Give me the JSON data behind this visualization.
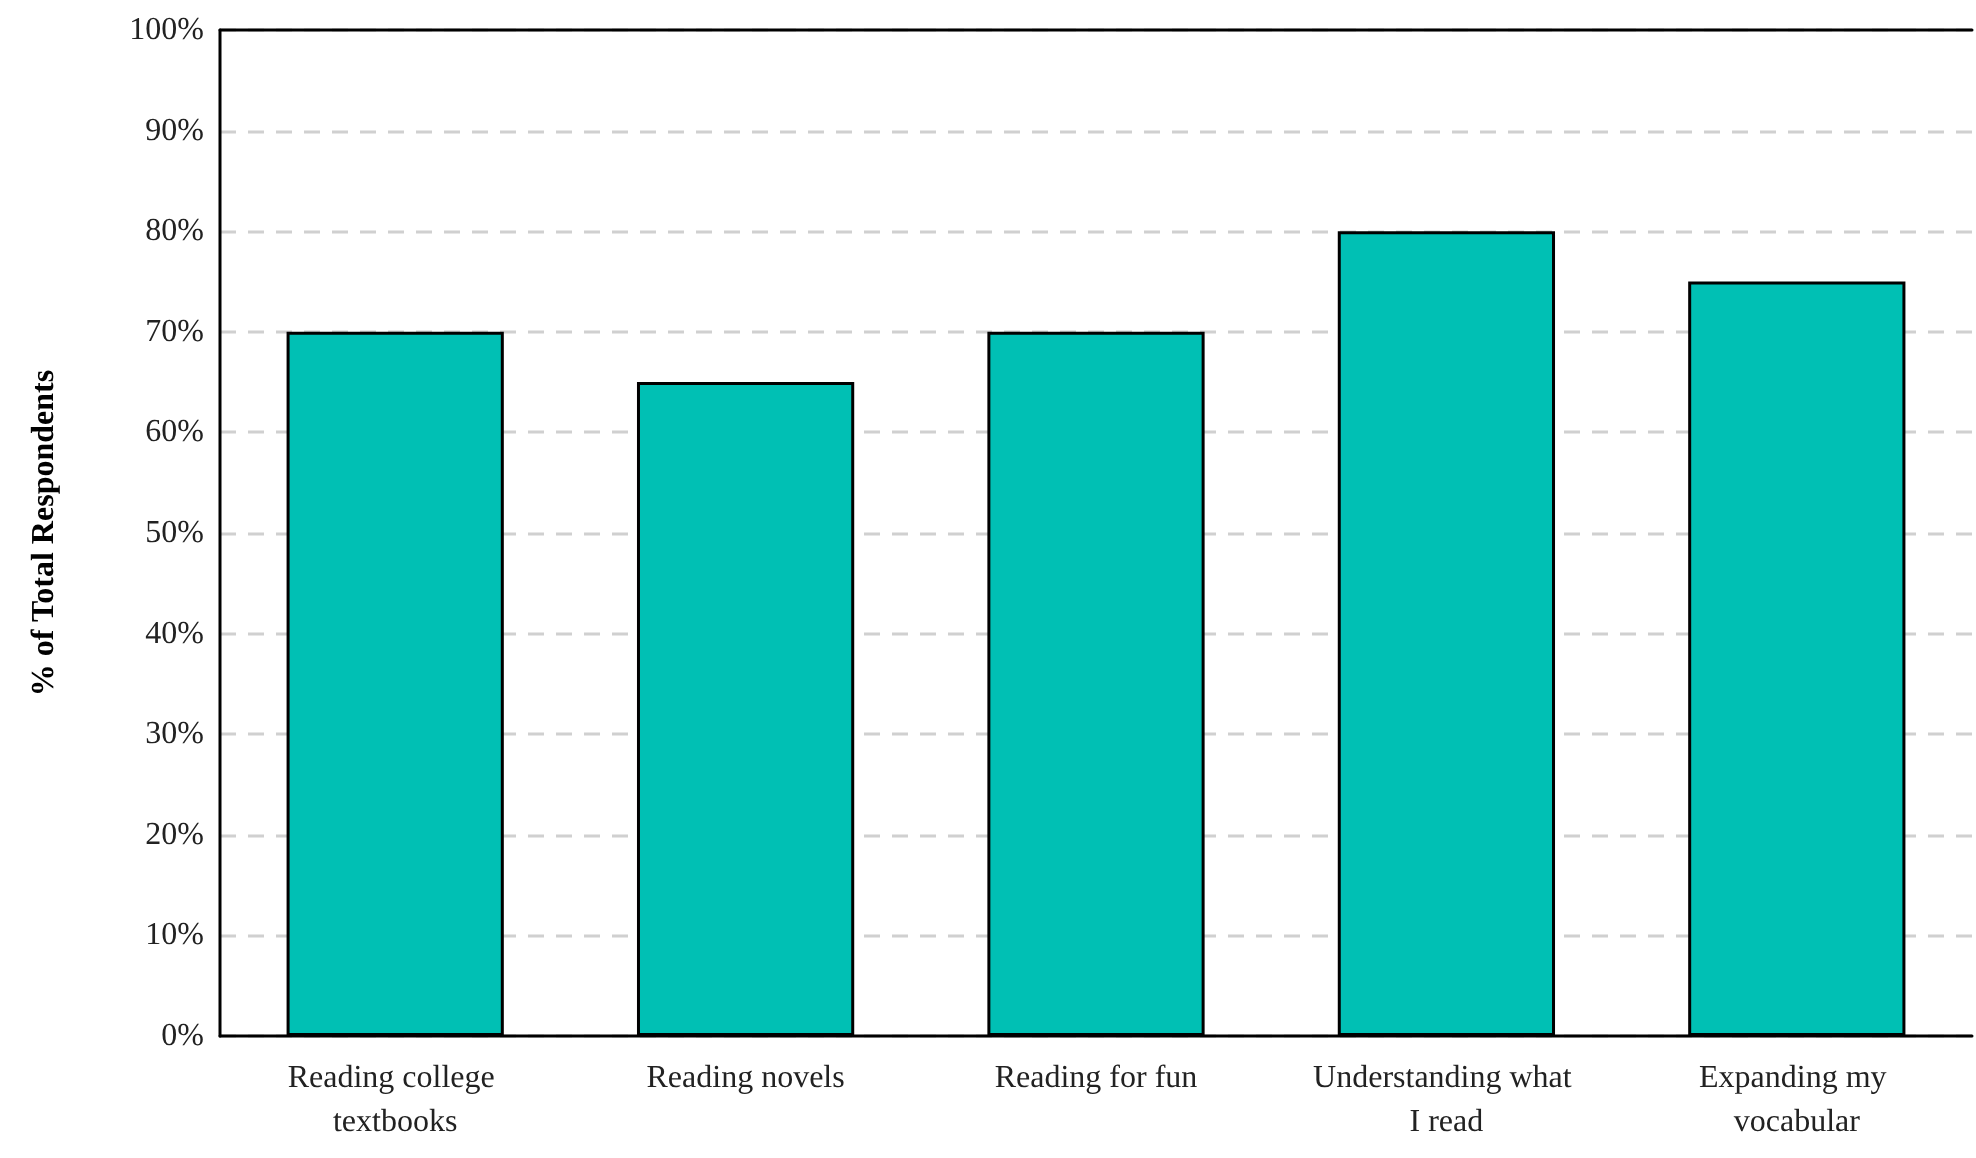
{
  "chart_data": {
    "type": "bar",
    "ylabel": "% of Total Respondents",
    "categories": [
      "Reading college textbooks",
      "Reading novels",
      "Reading for fun",
      "Understanding what I read",
      "Expanding my vocabular"
    ],
    "values": [
      70,
      65,
      70,
      80,
      75
    ],
    "color": "#00c0b4",
    "ylim": [
      0,
      100
    ],
    "yticks": [
      {
        "value": 0,
        "label": "0%"
      },
      {
        "value": 10,
        "label": "10%"
      },
      {
        "value": 20,
        "label": "20%"
      },
      {
        "value": 30,
        "label": "30%"
      },
      {
        "value": 40,
        "label": "40%"
      },
      {
        "value": 50,
        "label": "50%"
      },
      {
        "value": 60,
        "label": "60%"
      },
      {
        "value": 70,
        "label": "70%"
      },
      {
        "value": 80,
        "label": "80%"
      },
      {
        "value": 90,
        "label": "90%"
      },
      {
        "value": 100,
        "label": "100%"
      }
    ],
    "grid": "y"
  }
}
